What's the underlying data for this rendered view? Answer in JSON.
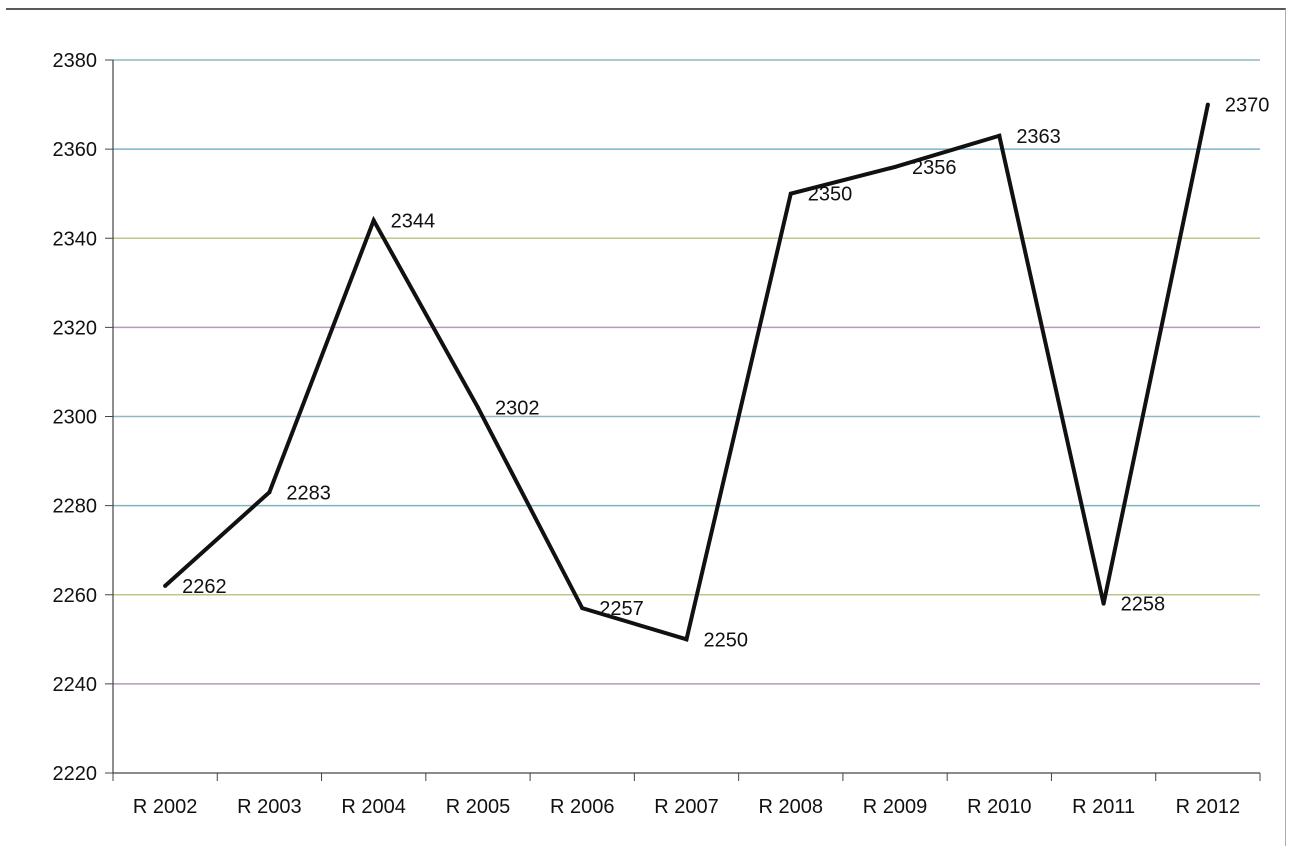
{
  "chart_data": {
    "type": "line",
    "title": "",
    "xlabel": "",
    "ylabel": "",
    "categories": [
      "R 2002",
      "R 2003",
      "R 2004",
      "R 2005",
      "R 2006",
      "R 2007",
      "R 2008",
      "R 2009",
      "R 2010",
      "R 2011",
      "R 2012"
    ],
    "series": [
      {
        "values": [
          2262,
          2283,
          2344,
          2302,
          2257,
          2250,
          2350,
          2356,
          2363,
          2258,
          2370
        ],
        "labels": [
          "2262",
          "2283",
          "2344",
          "2302",
          "2257",
          "2250",
          "2350",
          "2356",
          "2363",
          "2258",
          "2370"
        ]
      }
    ],
    "ylim": [
      2220,
      2380
    ],
    "yticks": [
      "2220",
      "2240",
      "2260",
      "2280",
      "2300",
      "2320",
      "2340",
      "2360",
      "2380"
    ],
    "grid": true,
    "legend": "none",
    "colors": {
      "line": "#111111",
      "gridlines": [
        "#8fb7c7",
        "#b79ab8",
        "#b9c98a",
        "#7fb3c4"
      ],
      "axis": "#444444"
    }
  }
}
